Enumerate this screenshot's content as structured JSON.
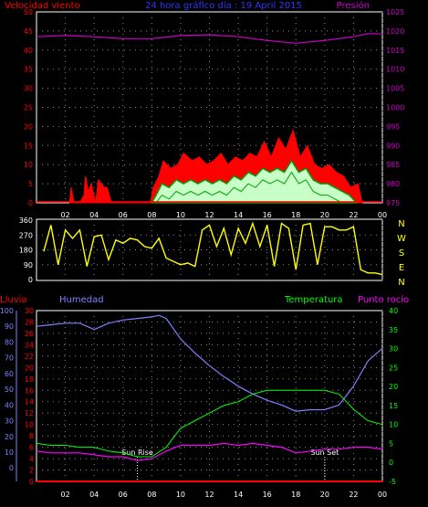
{
  "chart_data": [
    {
      "type": "area",
      "title": "24 hora gráfico día : 19 April 2015",
      "left_axis_label": "Velocidad viento",
      "right_axis_label": "Presión",
      "x_ticks": [
        "02",
        "04",
        "06",
        "08",
        "10",
        "12",
        "14",
        "16",
        "18",
        "20",
        "22",
        "00"
      ],
      "x_range_hours": [
        0,
        24
      ],
      "y_left": {
        "ticks": [
          0,
          5,
          10,
          15,
          20,
          25,
          30,
          35,
          40,
          45,
          50
        ],
        "range": [
          0,
          50
        ]
      },
      "y_right": {
        "ticks": [
          975,
          980,
          985,
          990,
          995,
          1000,
          1005,
          1010,
          1015,
          1020,
          1025
        ],
        "range": [
          975,
          1025
        ]
      },
      "grid": true,
      "colors": {
        "gust": "#ff0000",
        "wind": "#00a000",
        "wind_low": "#c8ffc8",
        "pressure": "#cc00cc",
        "title": "#3333ff",
        "left_label": "#ff0000",
        "right_label": "#cc00cc"
      },
      "series": [
        {
          "axis": "right",
          "color": "#cc00cc",
          "x": [
            0,
            2,
            4,
            6,
            8,
            10,
            12,
            14,
            16,
            18,
            20,
            22,
            23,
            24
          ],
          "y": [
            1018.5,
            1018.8,
            1018.5,
            1018.0,
            1018.0,
            1018.8,
            1019.0,
            1018.5,
            1017.5,
            1016.8,
            1017.5,
            1018.5,
            1019.3,
            1019.2
          ]
        },
        {
          "axis": "left",
          "color": "#ff0000",
          "x": [
            2.3,
            2.4,
            2.6,
            3.0,
            3.3,
            3.4,
            3.6,
            3.8,
            4.1,
            4.3,
            4.7,
            4.9,
            5.2,
            7.9,
            8.1,
            8.5,
            8.8,
            9.3,
            9.8,
            10.2,
            10.8,
            11.3,
            11.8,
            12.3,
            12.8,
            13.3,
            13.8,
            14.3,
            14.8,
            15.3,
            15.8,
            16.3,
            16.8,
            17.3,
            17.8,
            18.3,
            18.8,
            19.3,
            19.8,
            20.3,
            20.8,
            21.3,
            21.8,
            22.3,
            22.6
          ],
          "y": [
            0,
            4,
            0,
            0,
            2,
            7,
            3,
            5,
            0,
            6,
            4,
            4,
            0,
            0,
            4,
            7,
            11,
            9,
            10,
            13,
            11,
            12,
            10,
            11,
            13,
            10,
            12,
            11,
            13,
            12,
            16,
            12,
            17,
            14,
            19,
            12,
            15,
            10,
            9,
            10,
            8,
            7,
            4,
            5,
            0
          ]
        },
        {
          "axis": "left",
          "color": "#00a000",
          "x": [
            8.0,
            8.3,
            8.7,
            9.2,
            9.7,
            10.2,
            10.7,
            11.2,
            11.7,
            12.2,
            12.7,
            13.2,
            13.7,
            14.2,
            14.7,
            15.2,
            15.7,
            16.2,
            16.7,
            17.2,
            17.7,
            18.2,
            18.7,
            19.2,
            19.7,
            20.2,
            20.7,
            21.2,
            21.7,
            22.2
          ],
          "y": [
            0,
            2,
            5,
            4,
            6,
            5,
            6,
            5,
            6,
            5,
            6,
            5,
            7,
            6,
            8,
            7,
            9,
            8,
            9,
            8,
            11,
            8,
            9,
            6,
            5,
            5,
            4,
            3,
            2,
            0
          ]
        }
      ]
    },
    {
      "type": "line",
      "y_ticks": [
        0,
        90,
        180,
        270,
        360
      ],
      "y_range": [
        0,
        360
      ],
      "compass_labels": [
        "N",
        "W",
        "S",
        "E",
        "N"
      ],
      "x_ticks": [
        "02",
        "04",
        "06",
        "08",
        "10",
        "12",
        "14",
        "16",
        "18",
        "20",
        "22",
        "00"
      ],
      "grid": true,
      "colors": {
        "line": "#ffff00",
        "compass": "#ffff00"
      },
      "series": [
        {
          "color": "#ffff00",
          "x": [
            0.5,
            1.0,
            1.5,
            2.0,
            2.5,
            3.0,
            3.5,
            4.0,
            4.5,
            5.0,
            5.5,
            6.0,
            6.5,
            7.0,
            7.5,
            8.0,
            8.5,
            9.0,
            9.5,
            10.0,
            10.5,
            11.0,
            11.5,
            12.0,
            12.5,
            13.0,
            13.5,
            14.0,
            14.5,
            15.0,
            15.5,
            16.0,
            16.5,
            17.0,
            17.5,
            18.0,
            18.5,
            19.0,
            19.5,
            20.0,
            20.5,
            21.0,
            21.5,
            22.0,
            22.5,
            23.0,
            23.5,
            24.0
          ],
          "y": [
            170,
            330,
            90,
            300,
            250,
            300,
            80,
            260,
            270,
            120,
            240,
            220,
            250,
            240,
            200,
            190,
            250,
            130,
            110,
            90,
            100,
            80,
            300,
            330,
            200,
            310,
            150,
            310,
            220,
            340,
            200,
            330,
            80,
            340,
            310,
            60,
            330,
            340,
            90,
            320,
            320,
            300,
            300,
            320,
            60,
            40,
            40,
            30
          ]
        }
      ]
    },
    {
      "type": "line",
      "labels": {
        "rain": "Lluvia",
        "humidity": "Humedad",
        "temperature": "Temperatura",
        "dewpoint": "Punto rocío"
      },
      "annotations": [
        {
          "text": "Sun Rise",
          "x": 7.0
        },
        {
          "text": "Sun Set",
          "x": 20.0
        }
      ],
      "x_ticks": [
        "02",
        "04",
        "06",
        "08",
        "10",
        "12",
        "14",
        "16",
        "18",
        "20",
        "22",
        "00"
      ],
      "y_rain": {
        "ticks": [
          0,
          2,
          4,
          6,
          8,
          10,
          12,
          14,
          16,
          18,
          20,
          22,
          24,
          26,
          28,
          30
        ],
        "range": [
          0,
          30
        ]
      },
      "y_humidity": {
        "ticks": [
          0,
          10,
          20,
          30,
          40,
          50,
          60,
          70,
          80,
          90,
          100
        ],
        "range": [
          -8.57,
          100
        ]
      },
      "y_temp": {
        "ticks": [
          -5,
          0,
          5,
          10,
          15,
          20,
          25,
          30,
          35,
          40
        ],
        "range": [
          -5,
          40
        ]
      },
      "grid": true,
      "colors": {
        "rain": "#ff0000",
        "humidity": "#8080ff",
        "temperature": "#00ff00",
        "dewpoint": "#ff00ff",
        "rain_label": "#ff0000",
        "humidity_label": "#8080ff",
        "temp_label": "#00ff00",
        "dew_label": "#ff00ff"
      },
      "series": [
        {
          "axis": "humidity",
          "color": "#8080ff",
          "x": [
            0,
            1,
            2,
            3,
            4,
            5,
            6,
            7,
            8,
            8.5,
            9,
            10,
            11,
            12,
            13,
            14,
            15,
            16,
            17,
            18,
            19,
            20,
            21,
            22,
            23,
            24
          ],
          "y": [
            90,
            91,
            92,
            92,
            88,
            92,
            94,
            95,
            96,
            97,
            95,
            82,
            73,
            65,
            58,
            52,
            47,
            43,
            40,
            36,
            37,
            37,
            40,
            52,
            68,
            76
          ]
        },
        {
          "axis": "temp",
          "color": "#00ff00",
          "x": [
            0,
            1,
            2,
            3,
            4,
            5,
            6,
            7,
            8,
            9,
            10,
            11,
            12,
            13,
            14,
            15,
            16,
            17,
            18,
            19,
            20,
            21,
            22,
            23,
            24
          ],
          "y": [
            5,
            4.5,
            4.5,
            4,
            4,
            3,
            2.5,
            1.5,
            1.5,
            4,
            9,
            11,
            13,
            15,
            16,
            18,
            19,
            19,
            19,
            19,
            19,
            18,
            14,
            11,
            10
          ]
        },
        {
          "axis": "temp",
          "color": "#ff00ff",
          "x": [
            0,
            1,
            2,
            3,
            4,
            5,
            6,
            7,
            8,
            9,
            10,
            11,
            12,
            13,
            14,
            15,
            16,
            17,
            18,
            19,
            20,
            21,
            22,
            23,
            24
          ],
          "y": [
            3,
            2.5,
            2.5,
            2.5,
            2,
            1.5,
            1.5,
            0.5,
            1,
            3,
            4.5,
            4.5,
            4.5,
            5,
            4.5,
            5,
            4.5,
            4,
            2.5,
            3,
            3.5,
            3.5,
            4,
            4,
            3.5
          ]
        },
        {
          "axis": "rain",
          "color": "#ff0000",
          "x": [
            0,
            24
          ],
          "y": [
            0,
            0
          ]
        }
      ]
    }
  ]
}
